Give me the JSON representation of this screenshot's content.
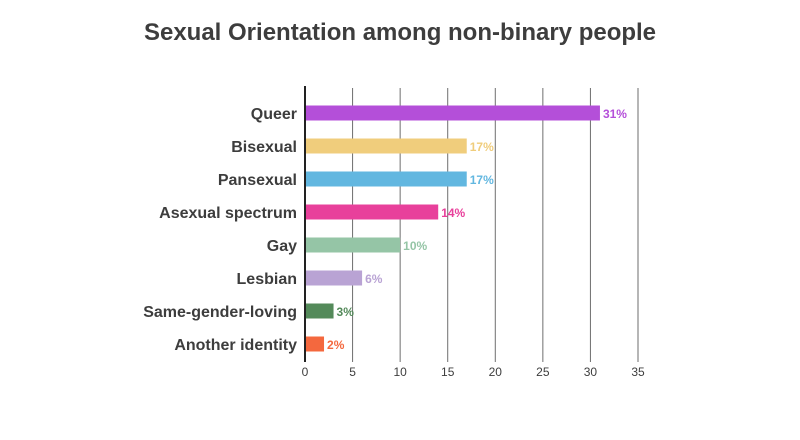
{
  "chart_data": {
    "type": "bar",
    "orientation": "horizontal",
    "title": "Sexual Orientation among non-binary people",
    "xlabel": "",
    "ylabel": "",
    "categories": [
      "Queer",
      "Bisexual",
      "Pansexual",
      "Asexual spectrum",
      "Gay",
      "Lesbian",
      "Same-gender-loving",
      "Another identity"
    ],
    "values": [
      31,
      17,
      17,
      14,
      10,
      6,
      3,
      2
    ],
    "value_labels": [
      "31%",
      "17%",
      "17%",
      "14%",
      "10%",
      "6%",
      "3%",
      "2%"
    ],
    "colors": [
      "#b44fd9",
      "#f0cd7c",
      "#62b7e0",
      "#e8409b",
      "#95c5a6",
      "#b9a3d4",
      "#548a5a",
      "#f4683e"
    ],
    "xlim": [
      0,
      35
    ],
    "xticks": [
      0,
      5,
      10,
      15,
      20,
      25,
      30,
      35
    ],
    "xtick_labels": [
      "0",
      "5",
      "10",
      "15",
      "20",
      "25",
      "30",
      "35"
    ],
    "grid": "vertical",
    "legend": "none"
  }
}
